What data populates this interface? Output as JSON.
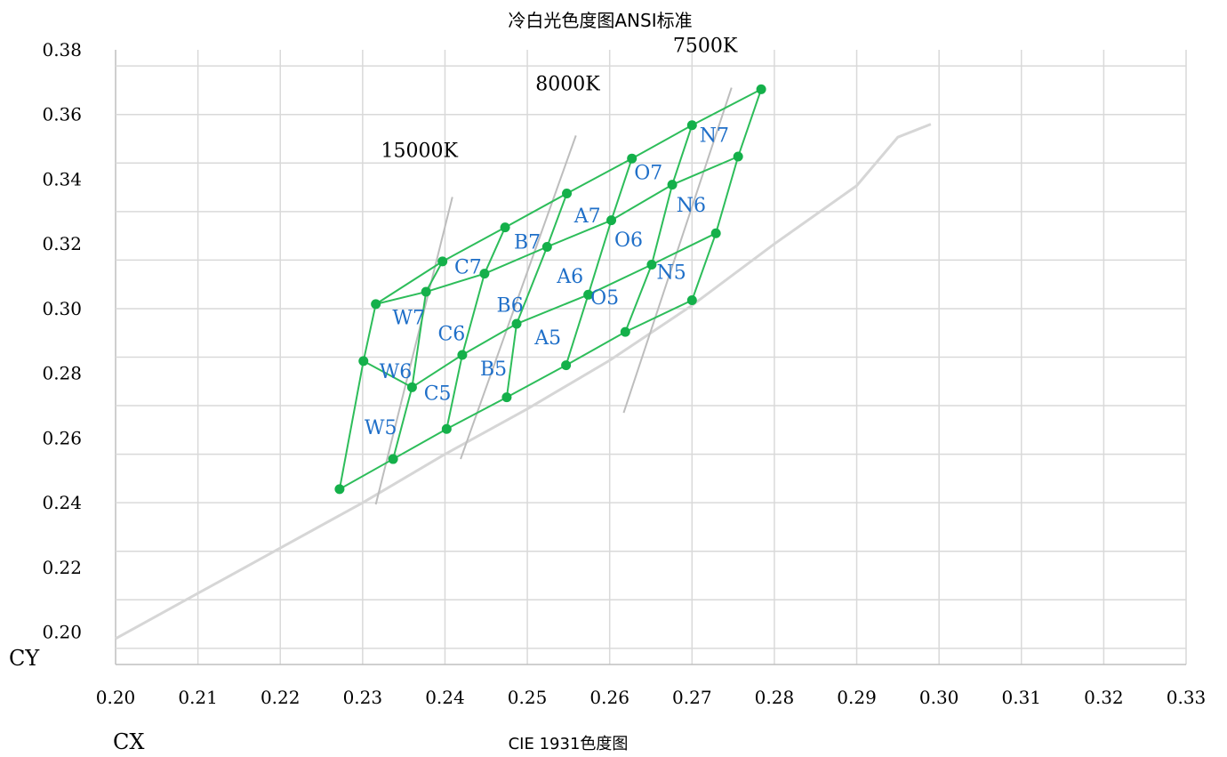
{
  "chart_data": {
    "type": "scatter",
    "title": "冷白光色度图ANSI标准",
    "xlabel": "CIE 1931色度图",
    "x_axis_letter": "CX",
    "y_axis_letter": "CY",
    "xlim": [
      0.2,
      0.33
    ],
    "ylim": [
      0.19,
      0.38
    ],
    "x_ticks": [
      "0.20",
      "0.21",
      "0.22",
      "0.23",
      "0.24",
      "0.25",
      "0.26",
      "0.27",
      "0.28",
      "0.29",
      "0.30",
      "0.31",
      "0.32",
      "0.33"
    ],
    "x_tick_values": [
      0.2,
      0.21,
      0.22,
      0.23,
      0.24,
      0.25,
      0.26,
      0.27,
      0.28,
      0.29,
      0.3,
      0.31,
      0.32,
      0.33
    ],
    "y_ticks": [
      "0.20",
      "0.22",
      "0.24",
      "0.26",
      "0.28",
      "0.30",
      "0.32",
      "0.34",
      "0.36",
      "0.38"
    ],
    "y_tick_values": [
      0.2,
      0.22,
      0.24,
      0.26,
      0.28,
      0.3,
      0.32,
      0.34,
      0.36,
      0.38
    ],
    "y_grid": [
      0.195,
      0.21,
      0.225,
      0.24,
      0.255,
      0.27,
      0.285,
      0.3,
      0.315,
      0.33,
      0.345,
      0.36,
      0.375
    ],
    "grid": true,
    "colors": {
      "bin_edge": "#2dbd5a",
      "bin_dot": "#14b04a",
      "bin_label": "#1f6fc8",
      "locus": "#d6d6d6",
      "cct_line": "#bdbdbd",
      "grid": "#d9d9d9"
    },
    "planckian_locus": [
      [
        0.2,
        0.198
      ],
      [
        0.21,
        0.212
      ],
      [
        0.22,
        0.226
      ],
      [
        0.23,
        0.24
      ],
      [
        0.24,
        0.255
      ],
      [
        0.25,
        0.269
      ],
      [
        0.26,
        0.284
      ],
      [
        0.27,
        0.301
      ],
      [
        0.28,
        0.32
      ],
      [
        0.29,
        0.338
      ],
      [
        0.295,
        0.353
      ],
      [
        0.299,
        0.357
      ]
    ],
    "cct_lines": [
      {
        "label": "15000K",
        "from": [
          0.2316,
          0.2395
        ],
        "to": [
          0.2409,
          0.3345
        ],
        "label_at": [
          0.2369,
          0.3469
        ]
      },
      {
        "label": "8000K",
        "from": [
          0.2419,
          0.2535
        ],
        "to": [
          0.2559,
          0.3535
        ],
        "label_at": [
          0.2549,
          0.3675
        ]
      },
      {
        "label": "7500K",
        "from": [
          0.2617,
          0.2678
        ],
        "to": [
          0.2748,
          0.3683
        ],
        "label_at": [
          0.2716,
          0.3793
        ]
      }
    ],
    "grid_nodes": [
      [
        [
          0.2272,
          0.2442
        ],
        [
          0.2337,
          0.2535
        ],
        [
          0.2402,
          0.2628
        ],
        [
          0.2475,
          0.2726
        ],
        [
          0.2547,
          0.2825
        ],
        [
          0.2619,
          0.2928
        ],
        [
          0.27,
          0.3026
        ]
      ],
      [
        [
          0.2301,
          0.2838
        ],
        [
          0.236,
          0.2757
        ],
        [
          0.2421,
          0.2857
        ],
        [
          0.2487,
          0.2953
        ],
        [
          0.2574,
          0.3043
        ],
        [
          0.2651,
          0.3136
        ],
        [
          0.2729,
          0.3233
        ]
      ],
      [
        [
          0.2316,
          0.3014
        ],
        [
          0.2377,
          0.3052
        ],
        [
          0.2448,
          0.3108
        ],
        [
          0.2524,
          0.3191
        ],
        [
          0.2602,
          0.3273
        ],
        [
          0.2676,
          0.3383
        ],
        [
          0.2756,
          0.347
        ]
      ],
      [
        [
          0.2316,
          0.3014
        ],
        [
          0.2397,
          0.3146
        ],
        [
          0.2473,
          0.3251
        ],
        [
          0.2548,
          0.3356
        ],
        [
          0.2627,
          0.3464
        ],
        [
          0.27,
          0.3567
        ],
        [
          0.2784,
          0.3678
        ]
      ]
    ],
    "bins": [
      {
        "name": "W7",
        "at": [
          0.2356,
          0.2974
        ]
      },
      {
        "name": "W6",
        "at": [
          0.234,
          0.2808
        ]
      },
      {
        "name": "W5",
        "at": [
          0.2322,
          0.2634
        ]
      },
      {
        "name": "C7",
        "at": [
          0.2428,
          0.313
        ]
      },
      {
        "name": "C6",
        "at": [
          0.2408,
          0.2924
        ]
      },
      {
        "name": "C5",
        "at": [
          0.2391,
          0.274
        ]
      },
      {
        "name": "B7",
        "at": [
          0.25,
          0.3208
        ]
      },
      {
        "name": "B6",
        "at": [
          0.2479,
          0.3012
        ]
      },
      {
        "name": "B5",
        "at": [
          0.2459,
          0.2816
        ]
      },
      {
        "name": "A7",
        "at": [
          0.2573,
          0.3288
        ]
      },
      {
        "name": "A6",
        "at": [
          0.2552,
          0.3102
        ]
      },
      {
        "name": "A5",
        "at": [
          0.2525,
          0.2912
        ]
      },
      {
        "name": "O7",
        "at": [
          0.2647,
          0.3422
        ]
      },
      {
        "name": "O6",
        "at": [
          0.2623,
          0.3215
        ]
      },
      {
        "name": "O5",
        "at": [
          0.2594,
          0.3035
        ]
      },
      {
        "name": "N7",
        "at": [
          0.2727,
          0.3538
        ]
      },
      {
        "name": "N6",
        "at": [
          0.2699,
          0.3322
        ]
      },
      {
        "name": "N5",
        "at": [
          0.2675,
          0.3114
        ]
      }
    ]
  }
}
